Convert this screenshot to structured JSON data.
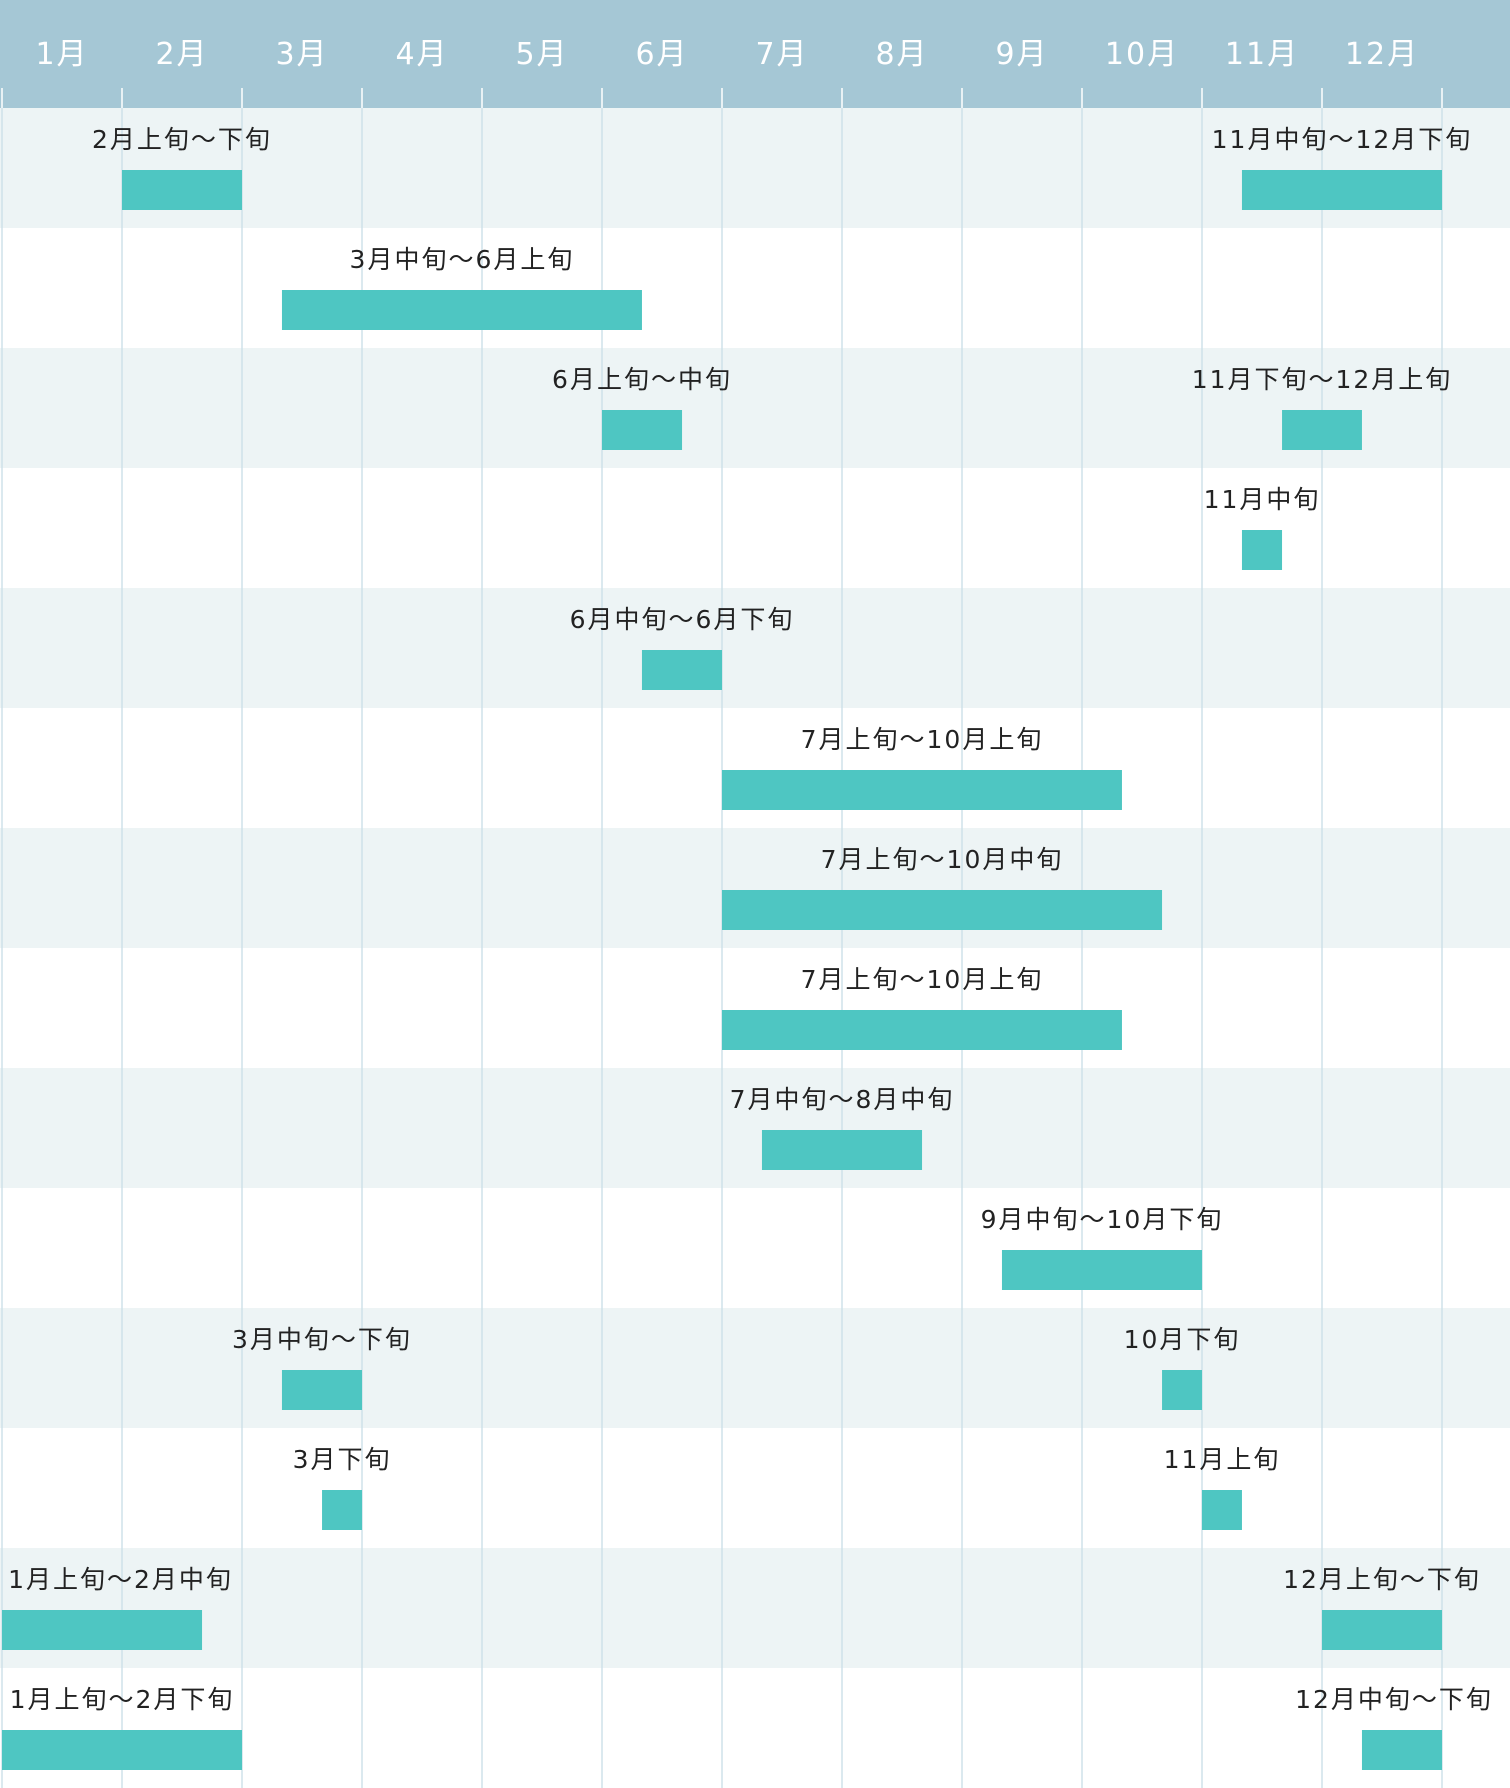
{
  "chart_data": {
    "type": "gantt",
    "x_unit": "month",
    "xlim": [
      1,
      13
    ],
    "categories": [
      "1月",
      "2月",
      "3月",
      "4月",
      "5月",
      "6月",
      "7月",
      "8月",
      "9月",
      "10月",
      "11月",
      "12月"
    ],
    "colors": {
      "header": "#a5c7d5",
      "bar": "#4ec6c2",
      "row_alt": "#edf4f5",
      "row": "#ffffff",
      "grid": "#cfe2ea",
      "text": "#222222",
      "month_text": "#ffffff"
    },
    "rows": [
      {
        "bars": [
          {
            "label": "2月上旬～下旬",
            "start": 2.0,
            "end": 3.0
          },
          {
            "label": "11月中旬～12月下旬",
            "start": 11.333,
            "end": 13.0
          }
        ]
      },
      {
        "bars": [
          {
            "label": "3月中旬～6月上旬",
            "start": 3.333,
            "end": 6.333
          }
        ]
      },
      {
        "bars": [
          {
            "label": "6月上旬～中旬",
            "start": 6.0,
            "end": 6.667
          },
          {
            "label": "11月下旬～12月上旬",
            "start": 11.667,
            "end": 12.333
          }
        ]
      },
      {
        "bars": [
          {
            "label": "11月中旬",
            "start": 11.333,
            "end": 11.667
          }
        ]
      },
      {
        "bars": [
          {
            "label": "6月中旬～6月下旬",
            "start": 6.333,
            "end": 7.0
          }
        ]
      },
      {
        "bars": [
          {
            "label": "7月上旬～10月上旬",
            "start": 7.0,
            "end": 10.333
          }
        ]
      },
      {
        "bars": [
          {
            "label": "7月上旬～10月中旬",
            "start": 7.0,
            "end": 10.667
          }
        ]
      },
      {
        "bars": [
          {
            "label": "7月上旬～10月上旬",
            "start": 7.0,
            "end": 10.333
          }
        ]
      },
      {
        "bars": [
          {
            "label": "7月中旬～8月中旬",
            "start": 7.333,
            "end": 8.667
          }
        ]
      },
      {
        "bars": [
          {
            "label": "9月中旬～10月下旬",
            "start": 9.333,
            "end": 11.0
          }
        ]
      },
      {
        "bars": [
          {
            "label": "3月中旬～下旬",
            "start": 3.333,
            "end": 4.0
          },
          {
            "label": "10月下旬",
            "start": 10.667,
            "end": 11.0
          }
        ]
      },
      {
        "bars": [
          {
            "label": "3月下旬",
            "start": 3.667,
            "end": 4.0
          },
          {
            "label": "11月上旬",
            "start": 11.0,
            "end": 11.333
          }
        ]
      },
      {
        "bars": [
          {
            "label": "1月上旬～2月中旬",
            "start": 1.0,
            "end": 2.667
          },
          {
            "label": "12月上旬～下旬",
            "start": 12.0,
            "end": 13.0
          }
        ]
      },
      {
        "bars": [
          {
            "label": "1月上旬～2月下旬",
            "start": 1.0,
            "end": 3.0
          },
          {
            "label": "12月中旬～下旬",
            "start": 12.333,
            "end": 13.0
          }
        ]
      }
    ]
  }
}
